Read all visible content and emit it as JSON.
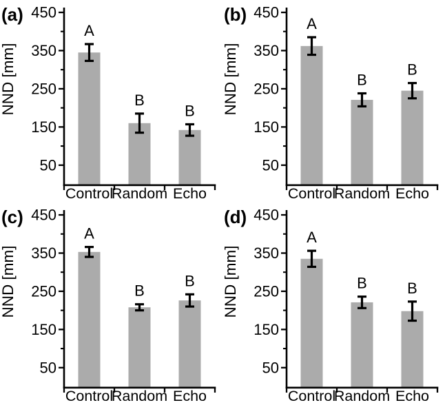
{
  "figure": {
    "background": "#ffffff",
    "bar_color": "#ababab",
    "axis_color": "#000000",
    "error_bar_color": "#000000",
    "text_color": "#000000"
  },
  "chart_data": [
    {
      "type": "bar",
      "panel_label": "(a)",
      "ylabel": "NND [mm]",
      "xlabel": "",
      "categories": [
        "Control",
        "Random",
        "Echo"
      ],
      "values": [
        345,
        160,
        142
      ],
      "errors": [
        22,
        25,
        15
      ],
      "sig_letters": [
        "A",
        "B",
        "B"
      ],
      "yticks": [
        450,
        350,
        250,
        150,
        50
      ],
      "minor_yticks": [
        400,
        300,
        200,
        100
      ],
      "ylim": [
        0,
        460
      ],
      "grid": false,
      "legend": false
    },
    {
      "type": "bar",
      "panel_label": "(b)",
      "ylabel": "NND [mm]",
      "xlabel": "",
      "categories": [
        "Control",
        "Random",
        "Echo"
      ],
      "values": [
        362,
        221,
        245
      ],
      "errors": [
        23,
        17,
        20
      ],
      "sig_letters": [
        "A",
        "B",
        "B"
      ],
      "yticks": [
        450,
        350,
        250,
        150,
        50
      ],
      "minor_yticks": [
        400,
        300,
        200,
        100
      ],
      "ylim": [
        0,
        460
      ],
      "grid": false,
      "legend": false
    },
    {
      "type": "bar",
      "panel_label": "(c)",
      "ylabel": "NND [mm]",
      "xlabel": "",
      "categories": [
        "Control",
        "Random",
        "Echo"
      ],
      "values": [
        353,
        208,
        226
      ],
      "errors": [
        13,
        8,
        16
      ],
      "sig_letters": [
        "A",
        "B",
        "B"
      ],
      "yticks": [
        450,
        350,
        250,
        150,
        50
      ],
      "minor_yticks": [
        400,
        300,
        200,
        100
      ],
      "ylim": [
        0,
        460
      ],
      "grid": false,
      "legend": false
    },
    {
      "type": "bar",
      "panel_label": "(d)",
      "ylabel": "NND [mm]",
      "xlabel": "",
      "categories": [
        "Control",
        "Random",
        "Echo"
      ],
      "values": [
        335,
        221,
        198
      ],
      "errors": [
        21,
        15,
        25
      ],
      "sig_letters": [
        "A",
        "B",
        "B"
      ],
      "yticks": [
        450,
        350,
        250,
        150,
        50
      ],
      "minor_yticks": [
        400,
        300,
        200,
        100
      ],
      "ylim": [
        0,
        460
      ],
      "grid": false,
      "legend": false
    }
  ]
}
